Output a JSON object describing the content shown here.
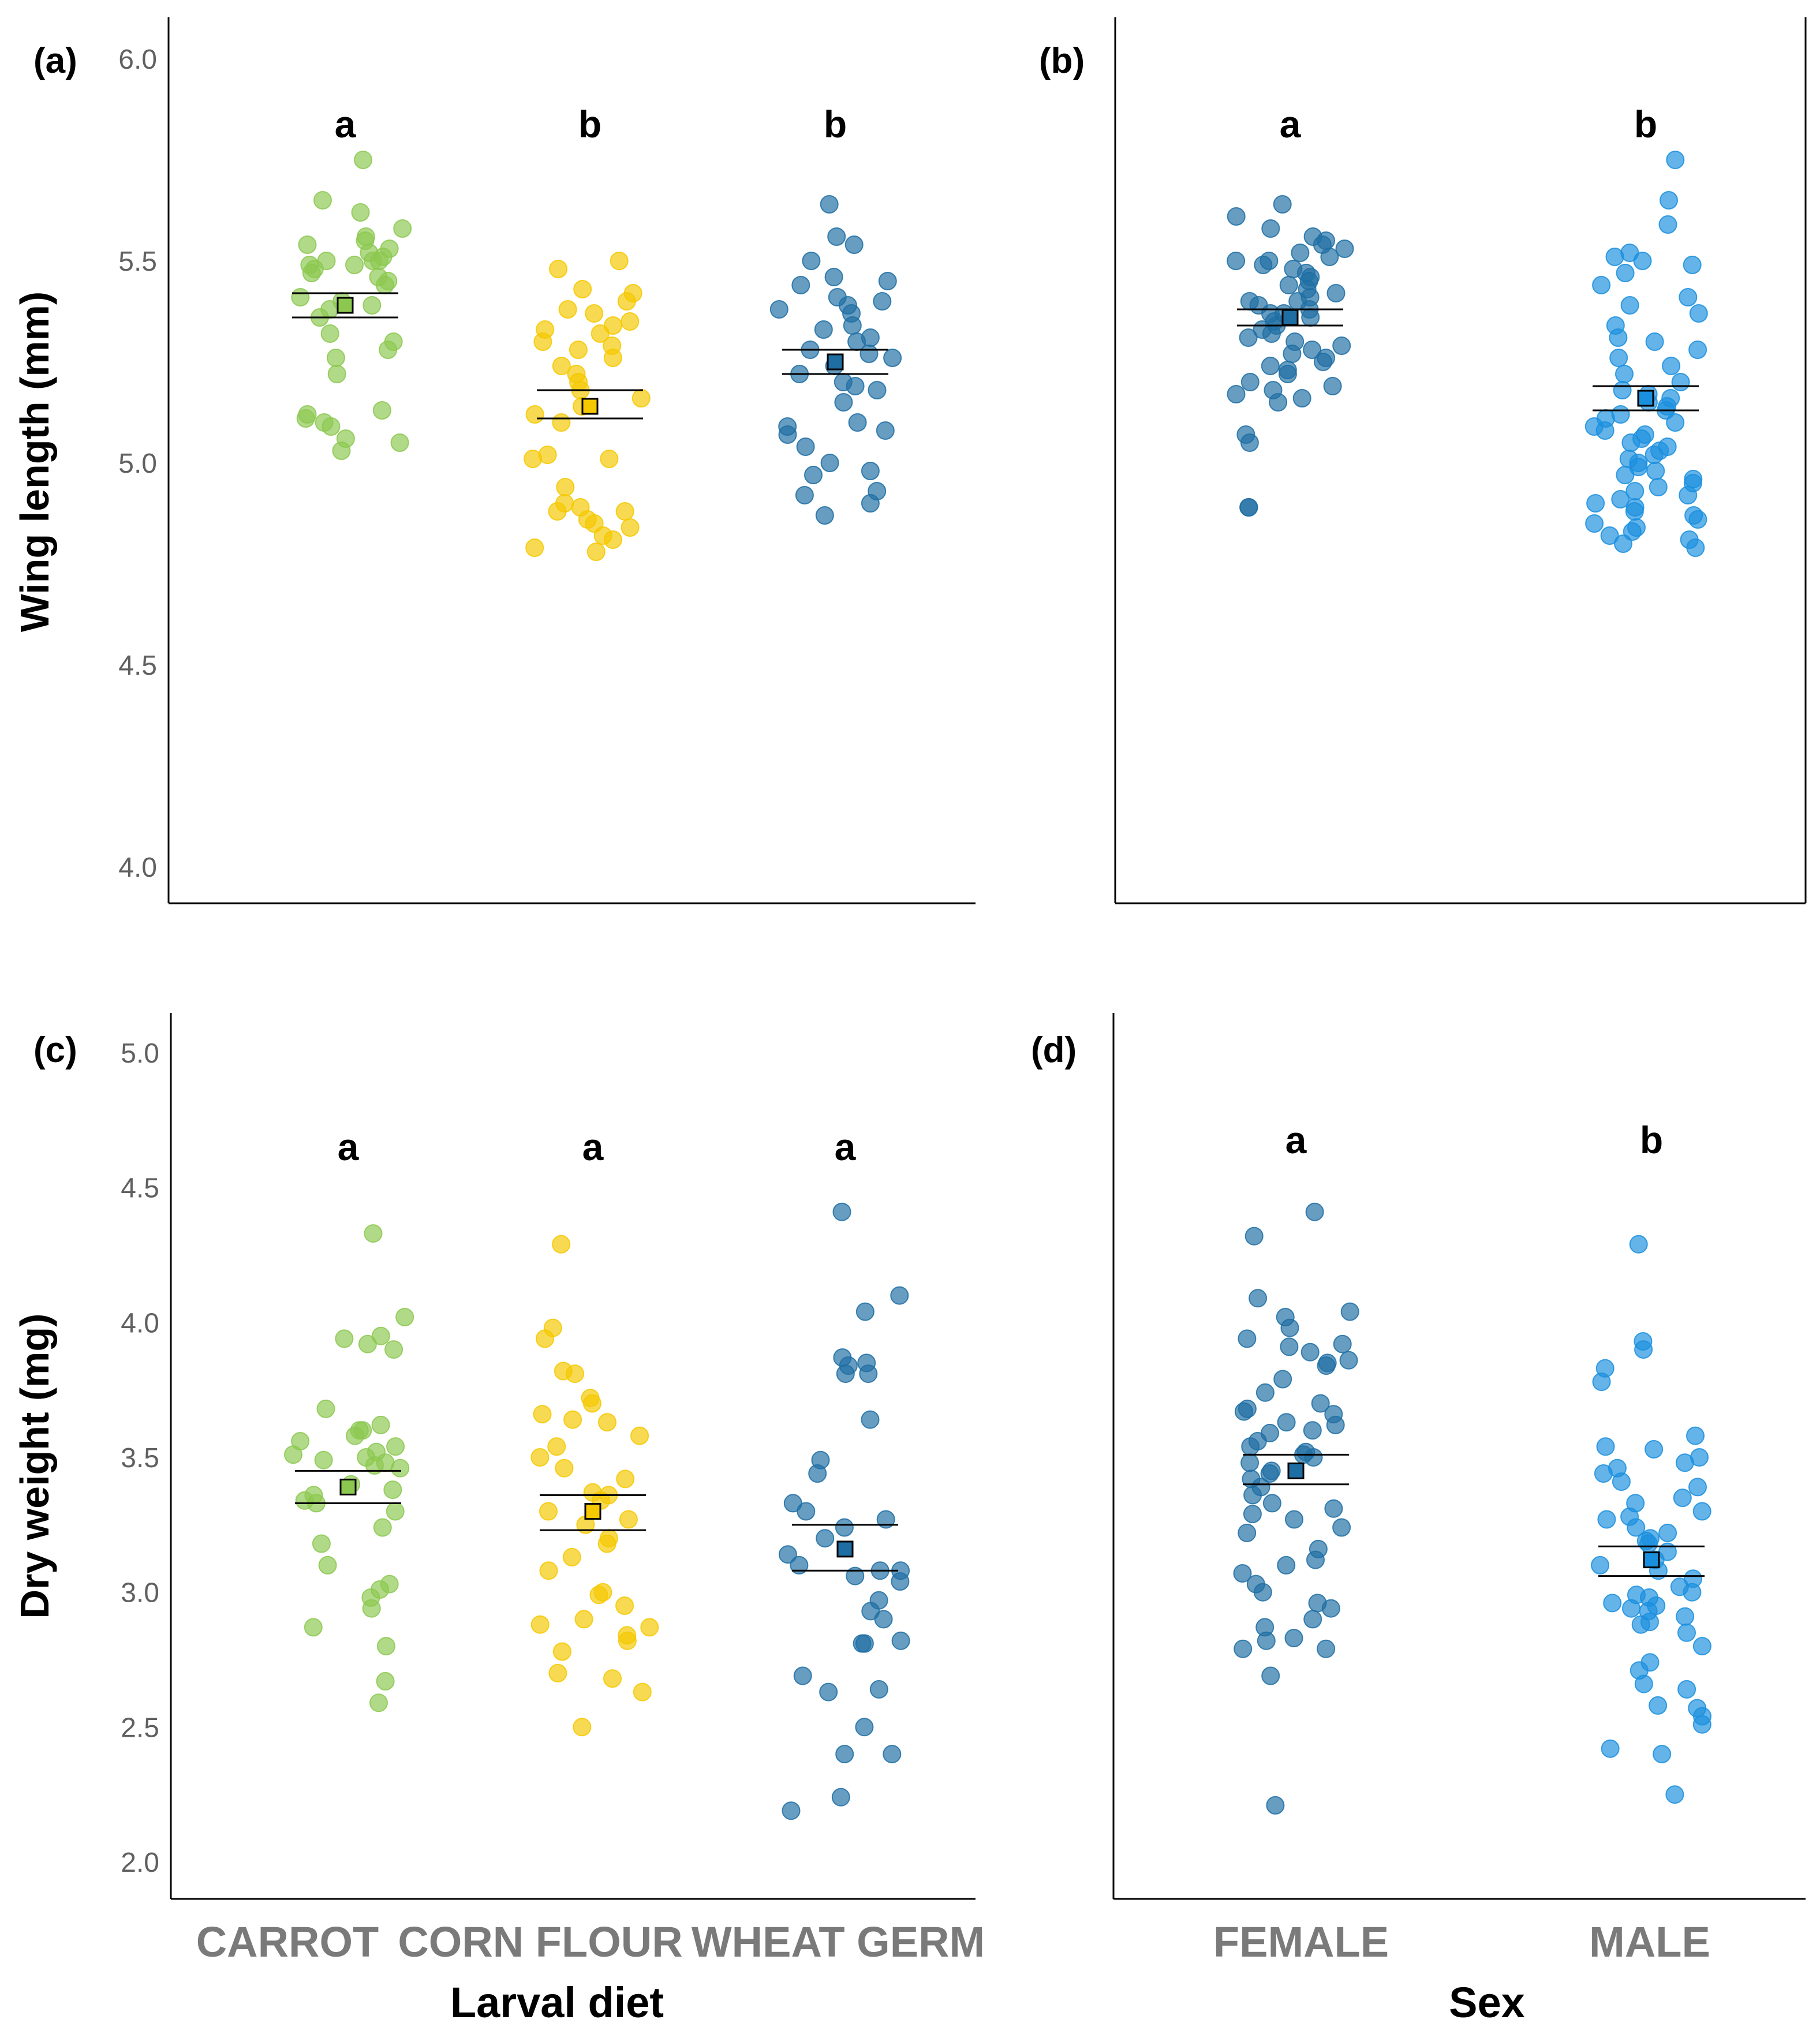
{
  "figure": {
    "colors": {
      "carrot": "#8cc850",
      "corn_flour": "#f5c800",
      "wheat_germ": "#1f6ea3",
      "female": "#1f6ea3",
      "male": "#1a8fde",
      "axis": "#000000",
      "tick_text": "#606060",
      "category_text": "#7a7a7a"
    },
    "shared": {
      "ylabel_wing": "Wing length (mm)",
      "ylabel_weight": "Dry  weight  (mg)",
      "xlabel_diet": "Larval diet",
      "xlabel_sex": "Sex",
      "diet_categories": [
        "CARROT",
        "CORN FLOUR",
        "WHEAT GERM"
      ],
      "sex_categories": [
        "FEMALE",
        "MALE"
      ]
    }
  },
  "chart_data": [
    {
      "panel": "(a)",
      "type": "scatter",
      "title": "",
      "xlabel": "",
      "ylabel": "Wing length (mm)",
      "ylim": [
        3.9,
        6.1
      ],
      "yticks": [
        4.0,
        4.5,
        5.0,
        5.5,
        6.0
      ],
      "ytick_labels": [
        "4.0",
        "4.5",
        "5.0",
        "5.5",
        "6.0"
      ],
      "categories": [
        "CARROT",
        "CORN FLOUR",
        "WHEAT GERM"
      ],
      "series": [
        {
          "name": "CARROT",
          "color": "#8cc850",
          "letter": "a",
          "mean": 5.39,
          "ci": [
            5.36,
            5.42
          ],
          "values": [
            5.75,
            5.65,
            5.62,
            5.58,
            5.56,
            5.55,
            5.54,
            5.53,
            5.52,
            5.51,
            5.5,
            5.5,
            5.5,
            5.49,
            5.49,
            5.48,
            5.47,
            5.46,
            5.45,
            5.44,
            5.41,
            5.4,
            5.39,
            5.38,
            5.36,
            5.32,
            5.3,
            5.28,
            5.26,
            5.22,
            5.13,
            5.12,
            5.11,
            5.1,
            5.09,
            5.06,
            5.05,
            5.03
          ]
        },
        {
          "name": "CORN FLOUR",
          "color": "#f5c800",
          "letter": "b",
          "mean": 5.14,
          "ci": [
            5.11,
            5.18
          ],
          "values": [
            5.5,
            5.48,
            5.43,
            5.42,
            5.4,
            5.38,
            5.37,
            5.35,
            5.34,
            5.33,
            5.32,
            5.3,
            5.29,
            5.28,
            5.26,
            5.24,
            5.22,
            5.2,
            5.18,
            5.16,
            5.14,
            5.12,
            5.1,
            5.02,
            5.01,
            5.01,
            4.94,
            4.9,
            4.89,
            4.88,
            4.88,
            4.86,
            4.85,
            4.84,
            4.82,
            4.81,
            4.79,
            4.78
          ]
        },
        {
          "name": "WHEAT GERM",
          "color": "#1f6ea3",
          "letter": "b",
          "mean": 5.25,
          "ci": [
            5.22,
            5.28
          ],
          "values": [
            5.64,
            5.56,
            5.54,
            5.5,
            5.46,
            5.45,
            5.44,
            5.41,
            5.4,
            5.39,
            5.38,
            5.37,
            5.34,
            5.33,
            5.31,
            5.3,
            5.28,
            5.27,
            5.26,
            5.24,
            5.22,
            5.2,
            5.19,
            5.18,
            5.15,
            5.1,
            5.09,
            5.08,
            5.07,
            5.04,
            5.0,
            4.98,
            4.97,
            4.93,
            4.92,
            4.9,
            4.87
          ]
        }
      ]
    },
    {
      "panel": "(b)",
      "type": "scatter",
      "title": "",
      "xlabel": "",
      "ylabel": "",
      "ylim": [
        3.9,
        6.1
      ],
      "categories": [
        "FEMALE",
        "MALE"
      ],
      "series": [
        {
          "name": "FEMALE",
          "color": "#1f6ea3",
          "letter": "a",
          "mean": 5.36,
          "ci": [
            5.34,
            5.38
          ],
          "values": [
            5.64,
            5.61,
            5.58,
            5.56,
            5.55,
            5.54,
            5.53,
            5.52,
            5.51,
            5.5,
            5.5,
            5.49,
            5.48,
            5.47,
            5.46,
            5.45,
            5.44,
            5.43,
            5.42,
            5.41,
            5.4,
            5.4,
            5.39,
            5.38,
            5.37,
            5.37,
            5.36,
            5.35,
            5.34,
            5.33,
            5.32,
            5.31,
            5.3,
            5.29,
            5.28,
            5.27,
            5.26,
            5.25,
            5.24,
            5.23,
            5.22,
            5.2,
            5.19,
            5.18,
            5.17,
            5.16,
            5.15,
            5.07,
            5.05,
            4.89,
            4.89
          ]
        },
        {
          "name": "MALE",
          "color": "#1a8fde",
          "letter": "b",
          "mean": 5.16,
          "ci": [
            5.13,
            5.19
          ],
          "values": [
            5.75,
            5.65,
            5.59,
            5.52,
            5.51,
            5.5,
            5.49,
            5.47,
            5.44,
            5.41,
            5.39,
            5.37,
            5.34,
            5.31,
            5.3,
            5.28,
            5.26,
            5.24,
            5.22,
            5.2,
            5.18,
            5.17,
            5.16,
            5.15,
            5.14,
            5.13,
            5.12,
            5.11,
            5.1,
            5.09,
            5.08,
            5.07,
            5.06,
            5.05,
            5.04,
            5.03,
            5.02,
            5.01,
            5.0,
            4.99,
            4.98,
            4.97,
            4.96,
            4.95,
            4.94,
            4.93,
            4.92,
            4.91,
            4.9,
            4.89,
            4.88,
            4.87,
            4.86,
            4.85,
            4.84,
            4.83,
            4.82,
            4.81,
            4.8,
            4.79
          ]
        }
      ]
    },
    {
      "panel": "(c)",
      "type": "scatter",
      "title": "",
      "xlabel": "Larval diet",
      "ylabel": "Dry  weight  (mg)",
      "ylim": [
        1.85,
        5.1
      ],
      "yticks": [
        2.0,
        2.5,
        3.0,
        3.5,
        4.0,
        4.5,
        5.0
      ],
      "ytick_labels": [
        "2.0",
        "2.5",
        "3.0",
        "3.5",
        "4.0",
        "4.5",
        "5.0"
      ],
      "categories": [
        "CARROT",
        "CORN FLOUR",
        "WHEAT GERM"
      ],
      "series": [
        {
          "name": "CARROT",
          "color": "#8cc850",
          "letter": "a",
          "mean": 3.39,
          "ci": [
            3.33,
            3.45
          ],
          "values": [
            4.33,
            4.02,
            3.95,
            3.94,
            3.92,
            3.9,
            3.68,
            3.62,
            3.6,
            3.6,
            3.58,
            3.56,
            3.54,
            3.52,
            3.51,
            3.5,
            3.49,
            3.48,
            3.47,
            3.46,
            3.4,
            3.38,
            3.36,
            3.34,
            3.33,
            3.3,
            3.24,
            3.18,
            3.1,
            3.03,
            3.01,
            2.98,
            2.94,
            2.87,
            2.8,
            2.67,
            2.59
          ]
        },
        {
          "name": "CORN FLOUR",
          "color": "#f5c800",
          "letter": "a",
          "mean": 3.3,
          "ci": [
            3.23,
            3.36
          ],
          "values": [
            4.29,
            3.98,
            3.94,
            3.82,
            3.81,
            3.72,
            3.7,
            3.66,
            3.64,
            3.63,
            3.58,
            3.54,
            3.5,
            3.46,
            3.42,
            3.37,
            3.36,
            3.34,
            3.3,
            3.27,
            3.25,
            3.2,
            3.18,
            3.13,
            3.08,
            3.0,
            2.99,
            2.95,
            2.9,
            2.88,
            2.87,
            2.84,
            2.82,
            2.78,
            2.7,
            2.68,
            2.63,
            2.5
          ]
        },
        {
          "name": "WHEAT GERM",
          "color": "#1f6ea3",
          "letter": "a",
          "mean": 3.16,
          "ci": [
            3.08,
            3.25
          ],
          "values": [
            4.41,
            4.1,
            4.04,
            3.87,
            3.85,
            3.84,
            3.81,
            3.81,
            3.64,
            3.49,
            3.44,
            3.33,
            3.3,
            3.27,
            3.24,
            3.2,
            3.14,
            3.1,
            3.08,
            3.08,
            3.06,
            3.04,
            2.97,
            2.93,
            2.9,
            2.82,
            2.81,
            2.81,
            2.69,
            2.64,
            2.63,
            2.5,
            2.4,
            2.4,
            2.24,
            2.19
          ]
        }
      ]
    },
    {
      "panel": "(d)",
      "type": "scatter",
      "title": "",
      "xlabel": "Sex",
      "ylabel": "",
      "ylim": [
        1.85,
        5.1
      ],
      "categories": [
        "FEMALE",
        "MALE"
      ],
      "series": [
        {
          "name": "FEMALE",
          "color": "#1f6ea3",
          "letter": "a",
          "mean": 3.45,
          "ci": [
            3.4,
            3.51
          ],
          "values": [
            4.41,
            4.32,
            4.09,
            4.04,
            4.02,
            3.98,
            3.94,
            3.92,
            3.91,
            3.89,
            3.86,
            3.85,
            3.84,
            3.79,
            3.74,
            3.7,
            3.68,
            3.67,
            3.66,
            3.63,
            3.62,
            3.6,
            3.59,
            3.56,
            3.54,
            3.52,
            3.51,
            3.5,
            3.48,
            3.45,
            3.44,
            3.42,
            3.39,
            3.36,
            3.33,
            3.31,
            3.29,
            3.27,
            3.24,
            3.22,
            3.16,
            3.12,
            3.1,
            3.07,
            3.03,
            3.0,
            2.96,
            2.94,
            2.9,
            2.87,
            2.83,
            2.82,
            2.79,
            2.79,
            2.69,
            2.21
          ]
        },
        {
          "name": "MALE",
          "color": "#1a8fde",
          "letter": "b",
          "mean": 3.12,
          "ci": [
            3.06,
            3.17
          ],
          "values": [
            4.29,
            3.93,
            3.9,
            3.83,
            3.78,
            3.58,
            3.54,
            3.53,
            3.5,
            3.48,
            3.46,
            3.44,
            3.41,
            3.39,
            3.35,
            3.33,
            3.3,
            3.28,
            3.27,
            3.24,
            3.22,
            3.2,
            3.19,
            3.18,
            3.15,
            3.12,
            3.1,
            3.08,
            3.05,
            3.02,
            3.0,
            2.99,
            2.98,
            2.96,
            2.95,
            2.94,
            2.93,
            2.91,
            2.89,
            2.88,
            2.85,
            2.8,
            2.74,
            2.71,
            2.66,
            2.64,
            2.58,
            2.57,
            2.54,
            2.51,
            2.42,
            2.4,
            2.25
          ]
        }
      ]
    }
  ]
}
